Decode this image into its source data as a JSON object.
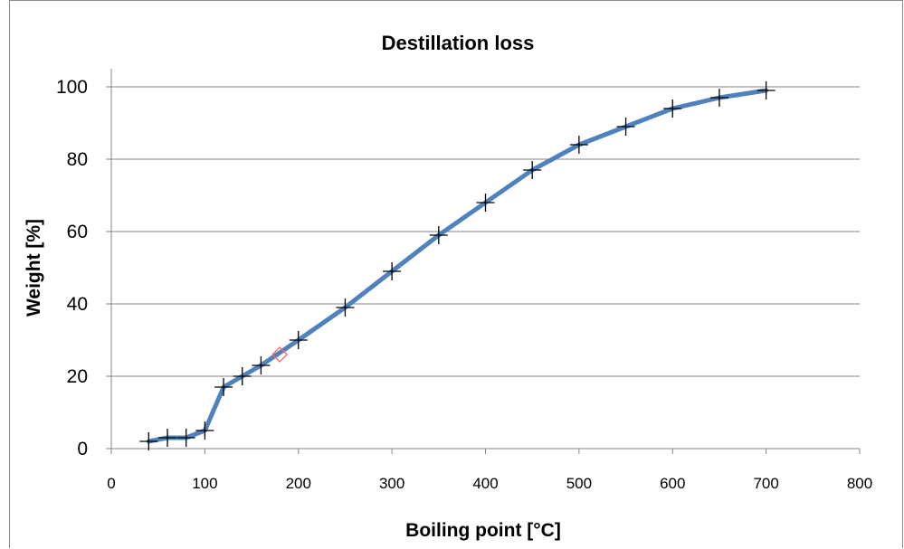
{
  "chart_data": {
    "type": "line",
    "title": "Destillation loss",
    "xlabel": "Boiling point [°C]",
    "ylabel": "Weight [%]",
    "xlim": [
      0,
      800
    ],
    "ylim": [
      0,
      100
    ],
    "x_ticks": [
      "0",
      "100",
      "200",
      "300",
      "400",
      "500",
      "600",
      "700",
      "800"
    ],
    "y_ticks": [
      "0",
      "20",
      "40",
      "60",
      "80",
      "100"
    ],
    "grid": "horizontal",
    "colors": {
      "line": "#4f81bd",
      "marker": "#000000",
      "highlight": "#ff6666",
      "grid": "#868686"
    },
    "series": [
      {
        "x": [
          40,
          60,
          80,
          100,
          120,
          140,
          160,
          200,
          250,
          300,
          350,
          400,
          450,
          500,
          550,
          600,
          650,
          700
        ],
        "y": [
          2,
          3,
          3,
          5,
          17,
          20,
          23,
          30,
          39,
          49,
          59,
          68,
          77,
          84,
          89,
          94,
          97,
          99
        ],
        "marker": "plus"
      },
      {
        "x": [
          180
        ],
        "y": [
          26
        ],
        "marker": "diamond"
      }
    ]
  }
}
